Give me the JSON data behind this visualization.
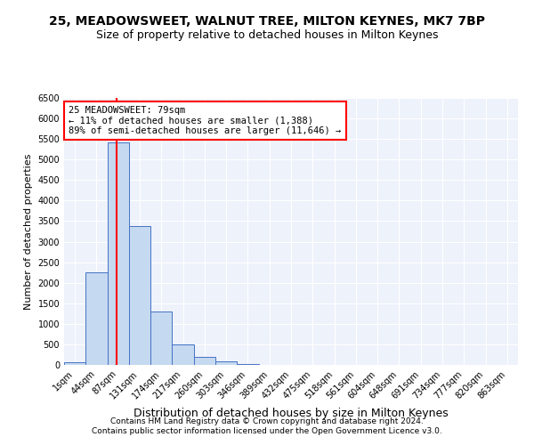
{
  "title": "25, MEADOWSWEET, WALNUT TREE, MILTON KEYNES, MK7 7BP",
  "subtitle": "Size of property relative to detached houses in Milton Keynes",
  "xlabel": "Distribution of detached houses by size in Milton Keynes",
  "ylabel": "Number of detached properties",
  "categories": [
    "1sqm",
    "44sqm",
    "87sqm",
    "131sqm",
    "174sqm",
    "217sqm",
    "260sqm",
    "303sqm",
    "346sqm",
    "389sqm",
    "432sqm",
    "475sqm",
    "518sqm",
    "561sqm",
    "604sqm",
    "648sqm",
    "691sqm",
    "734sqm",
    "777sqm",
    "820sqm",
    "863sqm"
  ],
  "values": [
    60,
    2260,
    5420,
    3380,
    1310,
    490,
    190,
    80,
    20,
    5,
    2,
    1,
    0,
    0,
    0,
    0,
    0,
    0,
    0,
    0,
    0
  ],
  "bar_color": "#c5d9f0",
  "bar_edge_color": "#4472c4",
  "property_line_x": 1.92,
  "annotation_line1": "25 MEADOWSWEET: 79sqm",
  "annotation_line2": "← 11% of detached houses are smaller (1,388)",
  "annotation_line3": "89% of semi-detached houses are larger (11,646) →",
  "annotation_box_color": "white",
  "annotation_box_edge_color": "red",
  "line_color": "red",
  "ylim": [
    0,
    6500
  ],
  "yticks": [
    0,
    500,
    1000,
    1500,
    2000,
    2500,
    3000,
    3500,
    4000,
    4500,
    5000,
    5500,
    6000,
    6500
  ],
  "bg_color": "#eef2fb",
  "footer1": "Contains HM Land Registry data © Crown copyright and database right 2024.",
  "footer2": "Contains public sector information licensed under the Open Government Licence v3.0.",
  "title_fontsize": 10,
  "subtitle_fontsize": 9,
  "xlabel_fontsize": 9,
  "ylabel_fontsize": 8,
  "tick_fontsize": 7,
  "annotation_fontsize": 7.5,
  "footer_fontsize": 6.5
}
